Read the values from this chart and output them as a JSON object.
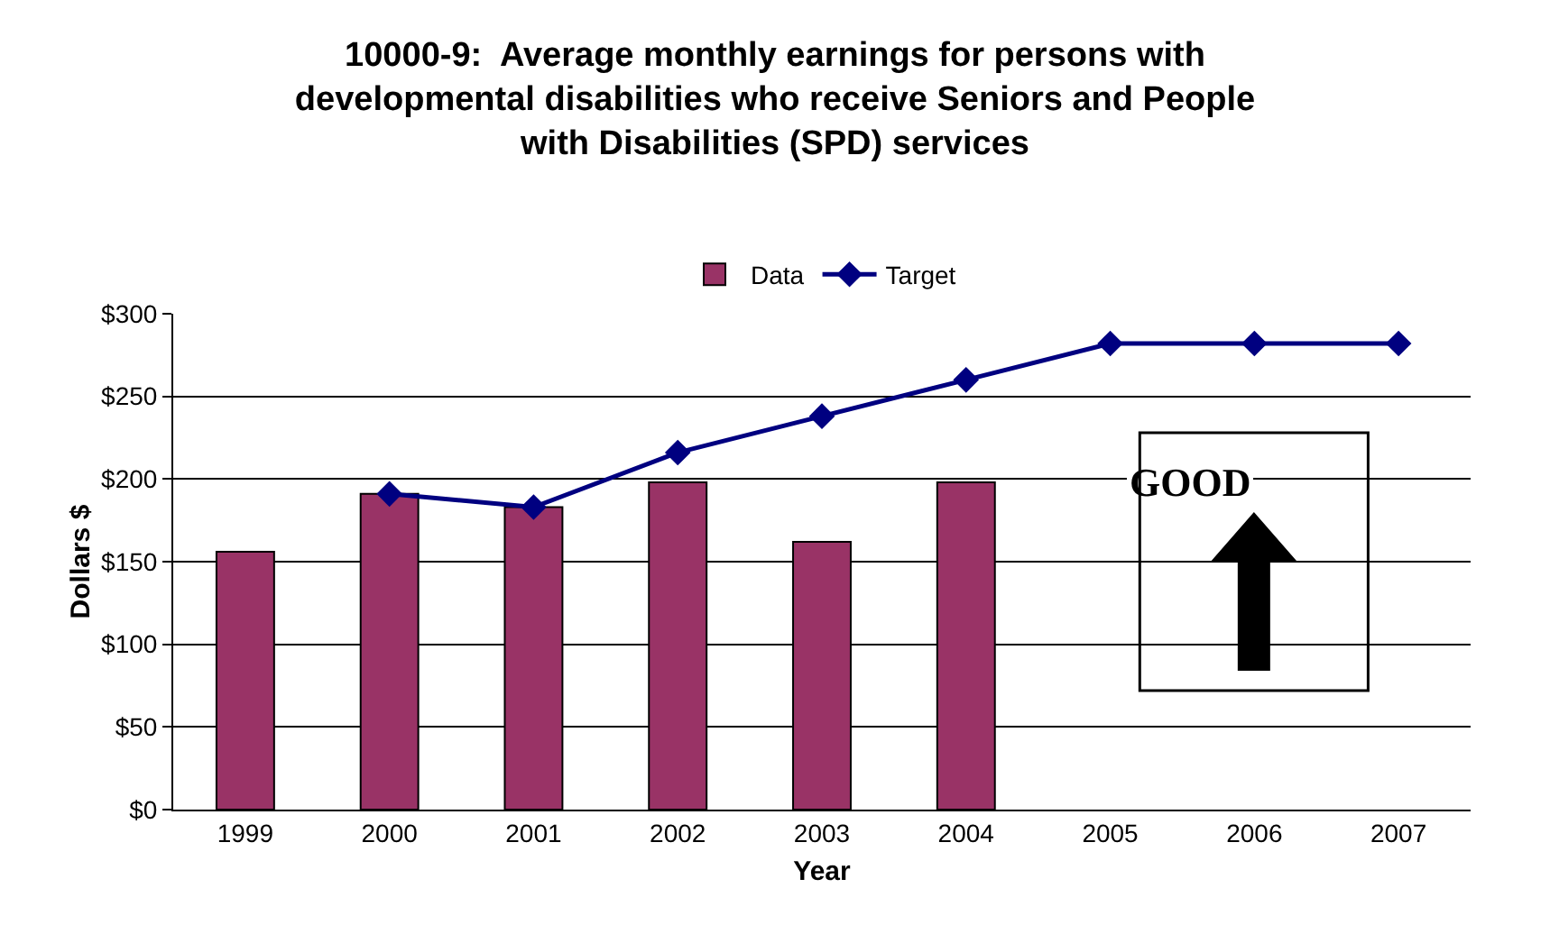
{
  "chart_data": {
    "type": "bar",
    "title": "10000-9:  Average monthly earnings for persons with developmental disabilities who receive Seniors and People with Disabilities (SPD) services",
    "xlabel": "Year",
    "ylabel": "Dollars $",
    "categories": [
      "1999",
      "2000",
      "2001",
      "2002",
      "2003",
      "2004",
      "2005",
      "2006",
      "2007"
    ],
    "series": [
      {
        "name": "Data",
        "color": "#993366",
        "values": [
          156,
          191,
          183,
          198,
          162,
          198,
          null,
          null,
          null
        ]
      },
      {
        "name": "Target",
        "type": "line",
        "color": "#000080",
        "marker": "diamond",
        "values": [
          null,
          191,
          183,
          216,
          238,
          260,
          282,
          282,
          282
        ]
      }
    ],
    "ylim": [
      0,
      300
    ],
    "yticks": [
      {
        "value": 0,
        "label": "$0"
      },
      {
        "value": 50,
        "label": "$50"
      },
      {
        "value": 100,
        "label": "$100"
      },
      {
        "value": 150,
        "label": "$150"
      },
      {
        "value": 200,
        "label": "$200"
      },
      {
        "value": 250,
        "label": "$250"
      },
      {
        "value": 300,
        "label": "$300"
      }
    ],
    "grid": "y",
    "legend": "top",
    "annotations": [
      "GOOD"
    ]
  }
}
